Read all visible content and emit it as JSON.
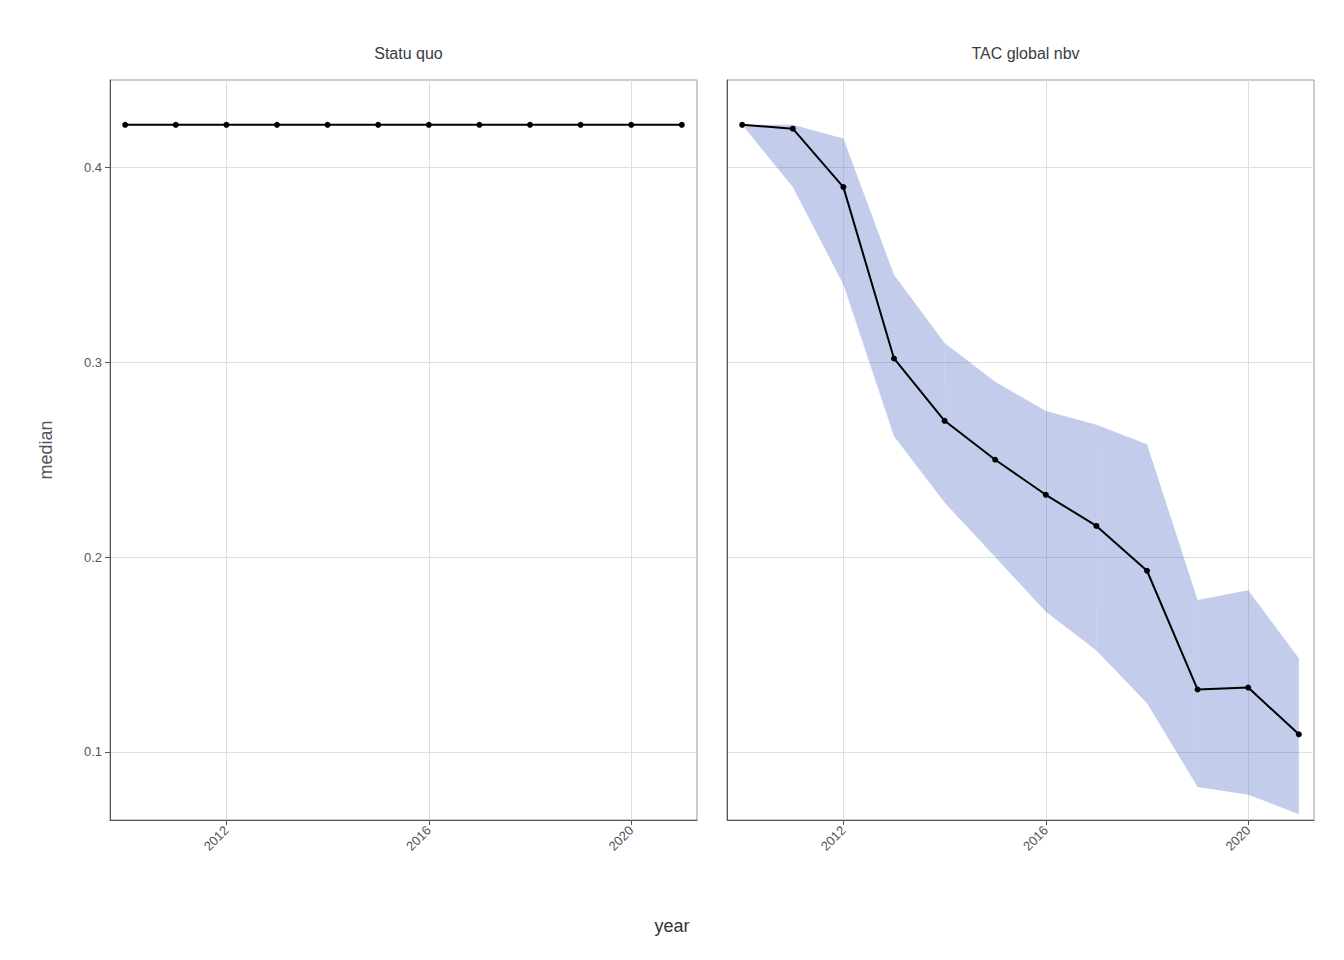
{
  "chart_data": [
    {
      "type": "line",
      "title": "Statu quo",
      "xlabel": "year",
      "ylabel": "median",
      "x": [
        2010,
        2011,
        2012,
        2013,
        2014,
        2015,
        2016,
        2017,
        2018,
        2019,
        2020,
        2021
      ],
      "series": [
        {
          "color": "#000000",
          "marker": "circle",
          "values": [
            0.422,
            0.422,
            0.422,
            0.422,
            0.422,
            0.422,
            0.422,
            0.422,
            0.422,
            0.422,
            0.422,
            0.422
          ],
          "lower": [
            0.422,
            0.422,
            0.422,
            0.422,
            0.422,
            0.422,
            0.422,
            0.422,
            0.422,
            0.422,
            0.422,
            0.422
          ],
          "upper": [
            0.422,
            0.422,
            0.422,
            0.422,
            0.422,
            0.422,
            0.422,
            0.422,
            0.422,
            0.422,
            0.422,
            0.422
          ]
        }
      ],
      "xlim": [
        2009.7,
        2021.3
      ],
      "xticks": [
        2012,
        2016,
        2020
      ],
      "ylim": [
        0.065,
        0.445
      ],
      "yticks": [
        0.1,
        0.2,
        0.3,
        0.4
      ],
      "grid": true
    },
    {
      "type": "line",
      "title": "TAC global nbv",
      "x": [
        2010,
        2011,
        2012,
        2013,
        2014,
        2015,
        2016,
        2017,
        2018,
        2019,
        2020,
        2021
      ],
      "series": [
        {
          "color": "#000000",
          "marker": "circle",
          "values": [
            0.422,
            0.42,
            0.39,
            0.302,
            0.27,
            0.25,
            0.232,
            0.216,
            0.193,
            0.132,
            0.133,
            0.109
          ],
          "lower": [
            0.422,
            0.39,
            0.34,
            0.262,
            0.228,
            0.2,
            0.172,
            0.152,
            0.125,
            0.082,
            0.078,
            0.068
          ],
          "upper": [
            0.422,
            0.422,
            0.415,
            0.345,
            0.31,
            0.29,
            0.275,
            0.268,
            0.258,
            0.178,
            0.183,
            0.148
          ]
        }
      ],
      "xlim": [
        2009.7,
        2021.3
      ],
      "xticks": [
        2012,
        2016,
        2020
      ],
      "ylim": [
        0.065,
        0.445
      ],
      "yticks": [
        0.1,
        0.2,
        0.3,
        0.4
      ],
      "grid": true,
      "tick_labels": "x"
    }
  ]
}
